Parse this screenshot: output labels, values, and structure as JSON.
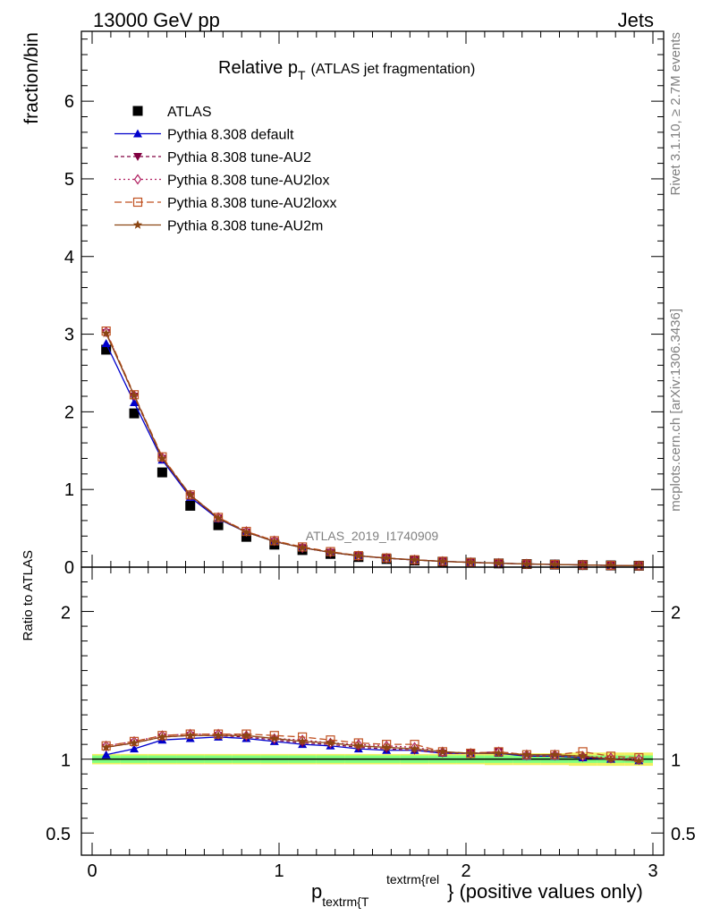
{
  "header": {
    "left": "13000 GeV pp",
    "right": "Jets"
  },
  "side_labels": {
    "rivet": "Rivet 3.1.10, ≥ 2.7M events",
    "mcplots": "mcplots.cern.ch [arXiv:1306.3436]"
  },
  "colors": {
    "atlas": "#000000",
    "default": "#0000cc",
    "au2": "#800040",
    "au2lox": "#b02060",
    "au2loxx": "#c05020",
    "au2m": "#8b4513",
    "band_yellow": "#f0f060",
    "band_green": "#80ff80"
  },
  "chart_data": [
    {
      "type": "line",
      "title_main": "Relative p",
      "title_sub": "T",
      "title_rest": "(ATLAS jet fragmentation)",
      "ylabel": "fraction/bin",
      "xlabel_main": "p",
      "xlabel_sub": "textrm{T",
      "xlabel_sup": "textrm{rel",
      "xlabel_rest": "} (positive values only)",
      "watermark": "ATLAS_2019_I1740909",
      "xlim": [
        0,
        3
      ],
      "ylim": [
        0,
        6.9
      ],
      "yticks": [
        "0",
        "1",
        "2",
        "3",
        "4",
        "5",
        "6"
      ],
      "x": [
        0.075,
        0.225,
        0.375,
        0.525,
        0.675,
        0.825,
        0.975,
        1.125,
        1.275,
        1.425,
        1.575,
        1.725,
        1.875,
        2.025,
        2.175,
        2.325,
        2.475,
        2.625,
        2.775,
        2.925
      ],
      "series": [
        {
          "name": "ATLAS",
          "values": [
            2.8,
            1.98,
            1.22,
            0.79,
            0.54,
            0.39,
            0.29,
            0.22,
            0.17,
            0.13,
            0.105,
            0.085,
            0.07,
            0.058,
            0.048,
            0.04,
            0.033,
            0.027,
            0.022,
            0.018
          ]
        },
        {
          "name": "Pythia 8.308 default",
          "values": [
            2.88,
            2.12,
            1.38,
            0.9,
            0.62,
            0.45,
            0.33,
            0.25,
            0.19,
            0.145,
            0.115,
            0.093,
            0.075,
            0.061,
            0.05,
            0.041,
            0.034,
            0.028,
            0.022,
            0.018
          ]
        },
        {
          "name": "Pythia 8.308 tune-AU2",
          "values": [
            3.02,
            2.2,
            1.4,
            0.92,
            0.63,
            0.45,
            0.33,
            0.25,
            0.19,
            0.145,
            0.114,
            0.092,
            0.074,
            0.061,
            0.05,
            0.041,
            0.034,
            0.028,
            0.022,
            0.018
          ]
        },
        {
          "name": "Pythia 8.308 tune-AU2lox",
          "values": [
            3.03,
            2.21,
            1.41,
            0.93,
            0.64,
            0.46,
            0.34,
            0.25,
            0.19,
            0.147,
            0.116,
            0.094,
            0.075,
            0.061,
            0.05,
            0.041,
            0.034,
            0.028,
            0.022,
            0.018
          ]
        },
        {
          "name": "Pythia 8.308 tune-AU2loxx",
          "values": [
            3.04,
            2.22,
            1.42,
            0.93,
            0.64,
            0.46,
            0.34,
            0.26,
            0.2,
            0.148,
            0.118,
            0.095,
            0.075,
            0.061,
            0.05,
            0.041,
            0.034,
            0.028,
            0.022,
            0.018
          ]
        },
        {
          "name": "Pythia 8.308 tune-AU2m",
          "values": [
            3.01,
            2.21,
            1.4,
            0.93,
            0.63,
            0.45,
            0.33,
            0.25,
            0.19,
            0.146,
            0.115,
            0.093,
            0.074,
            0.061,
            0.05,
            0.041,
            0.034,
            0.028,
            0.022,
            0.018
          ]
        }
      ]
    },
    {
      "type": "line",
      "ylabel": "Ratio to ATLAS",
      "xlim": [
        0,
        3
      ],
      "ylim": [
        0.35,
        2.3
      ],
      "xticks": [
        "0",
        "1",
        "2",
        "3"
      ],
      "yticks": [
        "0.5",
        "1",
        "2"
      ],
      "x": [
        0.075,
        0.225,
        0.375,
        0.525,
        0.675,
        0.825,
        0.975,
        1.125,
        1.275,
        1.425,
        1.575,
        1.725,
        1.875,
        2.025,
        2.175,
        2.325,
        2.475,
        2.625,
        2.775,
        2.925
      ],
      "band_inner": [
        0.025,
        0.025,
        0.025,
        0.025,
        0.025,
        0.025,
        0.025,
        0.025,
        0.025,
        0.025,
        0.025,
        0.025,
        0.025,
        0.025,
        0.025,
        0.025,
        0.025,
        0.025,
        0.025,
        0.025
      ],
      "band_outer": [
        0.035,
        0.035,
        0.035,
        0.035,
        0.035,
        0.035,
        0.035,
        0.035,
        0.035,
        0.035,
        0.035,
        0.035,
        0.035,
        0.035,
        0.04,
        0.04,
        0.04,
        0.045,
        0.045,
        0.045
      ],
      "series": [
        {
          "name": "Pythia 8.308 default",
          "values": [
            1.03,
            1.07,
            1.13,
            1.14,
            1.15,
            1.14,
            1.12,
            1.1,
            1.09,
            1.07,
            1.06,
            1.06,
            1.04,
            1.04,
            1.04,
            1.02,
            1.02,
            1.01,
            1.0,
            0.99
          ]
        },
        {
          "name": "Pythia 8.308 tune-AU2",
          "values": [
            1.08,
            1.11,
            1.15,
            1.16,
            1.16,
            1.15,
            1.13,
            1.11,
            1.1,
            1.08,
            1.07,
            1.06,
            1.04,
            1.04,
            1.05,
            1.02,
            1.02,
            1.01,
            1.0,
            0.99
          ]
        },
        {
          "name": "Pythia 8.308 tune-AU2lox",
          "values": [
            1.09,
            1.12,
            1.16,
            1.17,
            1.17,
            1.16,
            1.14,
            1.13,
            1.11,
            1.1,
            1.09,
            1.08,
            1.05,
            1.04,
            1.05,
            1.03,
            1.03,
            1.02,
            1.01,
            1.0
          ]
        },
        {
          "name": "Pythia 8.308 tune-AU2loxx",
          "values": [
            1.09,
            1.12,
            1.16,
            1.17,
            1.17,
            1.17,
            1.16,
            1.15,
            1.13,
            1.11,
            1.1,
            1.1,
            1.05,
            1.04,
            1.05,
            1.03,
            1.03,
            1.05,
            1.02,
            1.01
          ]
        },
        {
          "name": "Pythia 8.308 tune-AU2m",
          "values": [
            1.08,
            1.11,
            1.15,
            1.16,
            1.16,
            1.16,
            1.14,
            1.12,
            1.11,
            1.09,
            1.08,
            1.07,
            1.05,
            1.04,
            1.04,
            1.03,
            1.03,
            1.02,
            1.0,
            0.99
          ]
        }
      ]
    }
  ]
}
